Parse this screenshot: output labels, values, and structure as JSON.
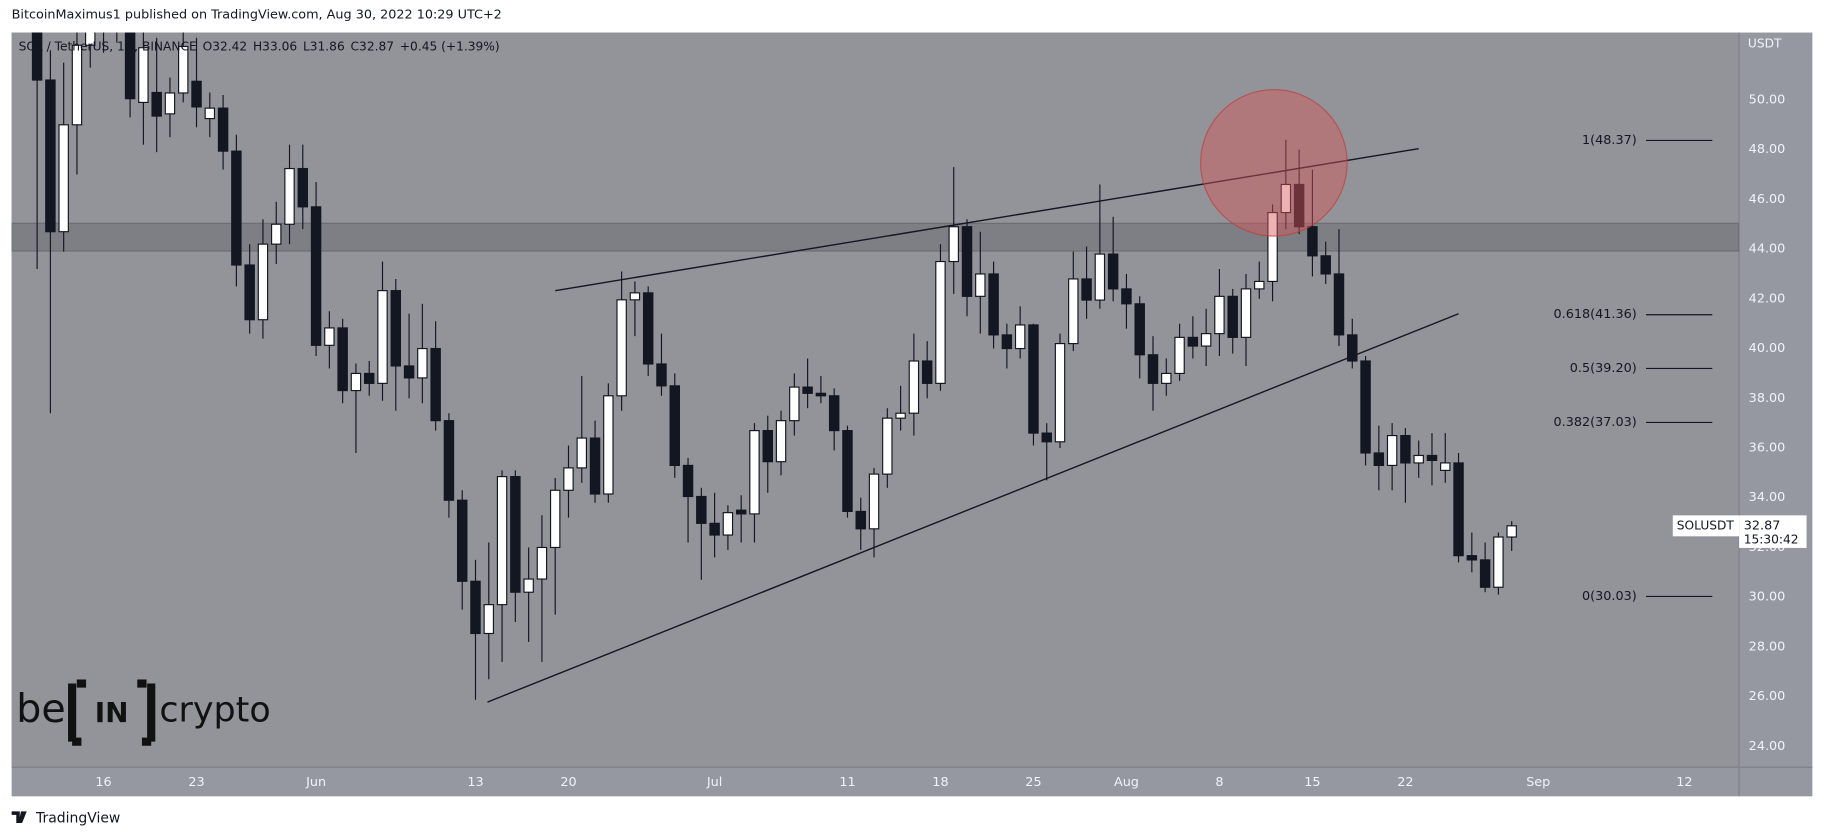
{
  "page": {
    "published": "BitcoinMaximus1 published on TradingView.com, Aug 30, 2022 10:29 UTC+2",
    "footer": "TradingView"
  },
  "chart_data": {
    "type": "candlestick",
    "symbol_info": "SOL / TetherUS, 1D, BINANCE",
    "ohlc_labels": [
      "O",
      "H",
      "L",
      "C"
    ],
    "change": "+0.45 (+1.39%)",
    "y_unit": "USDT",
    "watermark": [
      "be",
      "IN",
      "crypto"
    ],
    "grid": false,
    "categories": [
      null,
      null,
      null,
      null,
      null,
      "16",
      null,
      null,
      null,
      null,
      null,
      null,
      "23",
      null,
      null,
      null,
      null,
      null,
      null,
      null,
      null,
      "Jun",
      null,
      null,
      null,
      null,
      null,
      null,
      null,
      null,
      null,
      null,
      null,
      "13",
      null,
      null,
      null,
      null,
      null,
      null,
      "20",
      null,
      null,
      null,
      null,
      null,
      null,
      null,
      null,
      null,
      null,
      "Jul",
      null,
      null,
      null,
      null,
      null,
      null,
      null,
      null,
      null,
      "11",
      null,
      null,
      null,
      null,
      null,
      null,
      "18",
      null,
      null,
      null,
      null,
      null,
      null,
      "25",
      null,
      null,
      null,
      null,
      null,
      null,
      "Aug",
      null,
      null,
      null,
      null,
      null,
      null,
      "8",
      null,
      null,
      null,
      null,
      null,
      null,
      "15",
      null,
      null,
      null,
      null,
      null,
      null,
      "22",
      null,
      null,
      null,
      null,
      null,
      null,
      null,
      null,
      null,
      "Sep",
      null,
      null,
      null,
      null,
      null,
      null,
      null,
      null,
      null,
      null,
      "12",
      null,
      null,
      null
    ],
    "series": [
      {
        "up_color": "#ffffff",
        "down_color": "#131722",
        "open": [
          57,
          50.8,
          44.7,
          49,
          52.2,
          54.5,
          52.8,
          53.5,
          49.9,
          50.3,
          49.44,
          50.28,
          50.75,
          49.25,
          49.67,
          47.94,
          43.36,
          41.16,
          44.2,
          45.0,
          47.24,
          45.7,
          40.13,
          40.83,
          38.31,
          39.0,
          38.6,
          42.33,
          39.3,
          38.82,
          40.0,
          37.1,
          33.9,
          30.64,
          28.54,
          29.7,
          34.85,
          30.2,
          30.73,
          32.0,
          34.3,
          35.2,
          36.4,
          34.15,
          38.1,
          41.96,
          42.24,
          39.38,
          38.5,
          35.3,
          34.05,
          32.97,
          32.5,
          33.5,
          33.35,
          36.7,
          35.45,
          37.1,
          38.45,
          38.2,
          38.1,
          36.7,
          33.45,
          32.75,
          34.95,
          37.2,
          37.4,
          39.5,
          38.6,
          43.5,
          44.9,
          42.1,
          43.0,
          40.55,
          40.0,
          40.95,
          36.6,
          36.25,
          40.2,
          42.8,
          41.95,
          43.8,
          42.4,
          41.8,
          39.75,
          38.6,
          39.0,
          40.45,
          40.1,
          40.6,
          42.1,
          40.45,
          42.4,
          42.7,
          45.47,
          46.6,
          44.9,
          43.73,
          43.0,
          40.55,
          39.5,
          35.8,
          35.3,
          36.5,
          35.4,
          35.7,
          35.1,
          35.4,
          31.67,
          31.5,
          30.4,
          32.42,
          null,
          null,
          null,
          null,
          null,
          null,
          null,
          null,
          null,
          null,
          null,
          null,
          null,
          null,
          null,
          null
        ],
        "high": [
          60.5,
          52,
          51.5,
          53.5,
          55.5,
          55,
          55.5,
          54.5,
          52.8,
          52.5,
          50.9,
          53.4,
          52.5,
          50.3,
          50.2,
          48.6,
          44.2,
          45.2,
          45.9,
          48.2,
          48.2,
          46.7,
          41.5,
          41.2,
          39.4,
          39.5,
          43.5,
          42.8,
          41.4,
          41.8,
          41.1,
          37.4,
          34.3,
          31.5,
          32.2,
          35.1,
          35.1,
          32.0,
          33.3,
          34.8,
          36.1,
          38.9,
          37.1,
          38.6,
          43.1,
          42.7,
          42.5,
          40.6,
          39.0,
          35.6,
          34.4,
          34.2,
          33.7,
          34.1,
          37.0,
          37.3,
          37.5,
          39.0,
          39.6,
          38.9,
          38.4,
          36.9,
          34.0,
          35.2,
          37.6,
          38.5,
          40.6,
          40.3,
          44.2,
          47.3,
          45.2,
          44.7,
          43.5,
          41.0,
          41.7,
          41.0,
          37.0,
          40.6,
          43.9,
          44.1,
          46.6,
          45.3,
          43.0,
          42.1,
          40.5,
          39.6,
          41.0,
          41.3,
          41.6,
          43.2,
          42.4,
          43.0,
          43.5,
          45.8,
          48.4,
          48.0,
          47.2,
          44.3,
          44.8,
          41.2,
          39.7,
          36.9,
          37.0,
          36.8,
          36.3,
          36.6,
          36.6,
          35.8,
          32.6,
          32.2,
          32.6,
          33.06,
          null,
          null,
          null,
          null,
          null,
          null,
          null,
          null,
          null,
          null,
          null,
          null,
          null,
          null,
          null,
          null
        ],
        "low": [
          43.2,
          37.4,
          43.9,
          47,
          51.3,
          51.9,
          52.3,
          49.3,
          48.2,
          47.9,
          48.5,
          49.9,
          48.9,
          48.5,
          47.2,
          42.5,
          40.6,
          40.4,
          43.4,
          44.2,
          44.8,
          39.7,
          39.2,
          37.8,
          35.8,
          38.1,
          37.9,
          37.5,
          38.0,
          37.8,
          36.7,
          33.2,
          29.5,
          25.87,
          26.7,
          27.4,
          29.0,
          28.2,
          27.4,
          29.3,
          33.2,
          34.6,
          33.8,
          33.8,
          37.5,
          40.5,
          38.9,
          38.1,
          34.8,
          32.2,
          30.7,
          31.6,
          31.9,
          32.2,
          32.2,
          34.2,
          34.9,
          36.5,
          37.6,
          37.8,
          35.9,
          33.2,
          31.9,
          31.6,
          34.4,
          36.7,
          36.5,
          38.0,
          38.3,
          42.2,
          41.3,
          40.6,
          40.0,
          39.2,
          39.6,
          36.1,
          34.7,
          36.0,
          39.9,
          41.2,
          41.6,
          41.9,
          40.8,
          38.8,
          37.5,
          38.1,
          38.7,
          39.6,
          39.3,
          39.7,
          39.8,
          39.3,
          42.0,
          41.9,
          44.8,
          44.6,
          42.9,
          42.6,
          40.1,
          39.2,
          35.3,
          34.3,
          34.3,
          33.8,
          34.8,
          34.5,
          34.6,
          31.4,
          31.0,
          30.2,
          30.1,
          31.86,
          null,
          null,
          null,
          null,
          null,
          null,
          null,
          null,
          null,
          null,
          null,
          null,
          null,
          null,
          null,
          null
        ],
        "close": [
          50.8,
          44.7,
          49,
          52.2,
          54.5,
          52.8,
          54,
          50.05,
          52.1,
          49.35,
          50.28,
          52.15,
          49.72,
          49.67,
          47.94,
          43.36,
          41.16,
          44.2,
          45.0,
          47.24,
          45.7,
          40.13,
          40.83,
          38.31,
          39.0,
          38.6,
          42.33,
          39.3,
          38.82,
          40.0,
          37.1,
          33.9,
          30.64,
          28.54,
          29.7,
          34.85,
          30.2,
          30.73,
          32.0,
          34.3,
          35.2,
          36.4,
          34.15,
          38.1,
          41.96,
          42.24,
          39.38,
          38.5,
          35.3,
          34.05,
          32.97,
          32.5,
          33.4,
          33.35,
          36.7,
          35.45,
          37.1,
          38.45,
          38.2,
          38.1,
          36.7,
          33.45,
          32.75,
          34.95,
          37.2,
          37.4,
          39.5,
          38.6,
          43.5,
          44.9,
          42.1,
          43.0,
          40.55,
          40.0,
          40.95,
          36.6,
          36.25,
          40.2,
          42.8,
          41.95,
          43.8,
          42.4,
          41.8,
          39.75,
          38.6,
          39.0,
          40.45,
          40.1,
          40.6,
          42.1,
          40.45,
          42.4,
          42.7,
          45.47,
          46.6,
          44.9,
          43.73,
          43.0,
          40.55,
          39.5,
          35.8,
          35.3,
          36.5,
          35.4,
          35.7,
          35.5,
          35.4,
          31.67,
          31.5,
          30.4,
          32.42,
          32.87,
          null,
          null,
          null,
          null,
          null,
          null,
          null,
          null,
          null,
          null,
          null,
          null,
          null,
          null,
          null,
          null
        ]
      }
    ],
    "ylim": [
      23.16,
      52.71
    ],
    "yticks": [
      {
        "value": 24,
        "label": "24.00"
      },
      {
        "value": 26,
        "label": "26.00"
      },
      {
        "value": 28,
        "label": "28.00"
      },
      {
        "value": 30,
        "label": "30.00"
      },
      {
        "value": 32,
        "label": "32.00"
      },
      {
        "value": 34,
        "label": "34.00"
      },
      {
        "value": 36,
        "label": "36.00"
      },
      {
        "value": 38,
        "label": "38.00"
      },
      {
        "value": 40,
        "label": "40.00"
      },
      {
        "value": 42,
        "label": "42.00"
      },
      {
        "value": 44,
        "label": "44.00"
      },
      {
        "value": 46,
        "label": "46.00"
      },
      {
        "value": 48,
        "label": "48.00"
      },
      {
        "value": 50,
        "label": "50.00"
      }
    ],
    "zone": {
      "ylim": [
        43.92,
        45.04
      ],
      "color": "rgba(55,55,65,0.22)"
    },
    "trendlines": [
      {
        "x": [
          39,
          104
        ],
        "y": [
          42.33,
          48.04
        ]
      },
      {
        "x": [
          33.9,
          107
        ],
        "y": [
          25.78,
          41.4
        ]
      }
    ],
    "highlight": {
      "x": 93.1,
      "y": 47.47,
      "color": "rgba(214,86,86,0.45)"
    },
    "fib_levels": [
      {
        "label": "1(48.37)",
        "value": 48.37
      },
      {
        "label": "0.618(41.36)",
        "value": 41.36
      },
      {
        "label": "0.5(39.20)",
        "value": 39.2
      },
      {
        "label": "0.382(37.03)",
        "value": 37.03
      },
      {
        "label": "0(30.03)",
        "value": 30.03
      }
    ],
    "last_label": {
      "symbol": "SOLUSDT",
      "countdown": "15:30:42"
    }
  }
}
